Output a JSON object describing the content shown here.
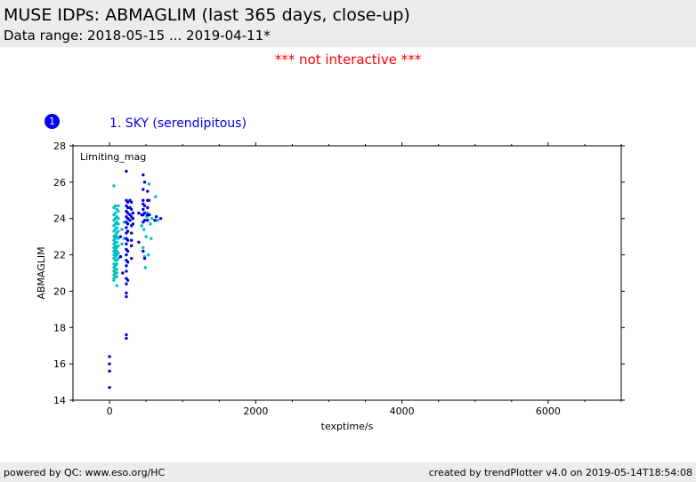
{
  "header": {
    "title": "MUSE IDPs: ABMAGLIM (last 365 days, close-up)",
    "subtitle": "Data range: 2018-05-15 ... 2019-04-11*"
  },
  "notice": "*** not interactive ***",
  "panel": {
    "badge": "1",
    "title": "1. SKY (serendipitous)"
  },
  "footer": {
    "left": "powered by QC: www.eso.org/HC",
    "right": "created by trendPlotter v4.0 on 2019-05-14T18:54:08"
  },
  "colors": {
    "series_a": "#00c0c0",
    "series_b": "#0000dd",
    "accent": "#0000ee",
    "notice": "#ff0000"
  },
  "chart_data": {
    "type": "scatter",
    "title": "",
    "xlabel": "texptime/s",
    "ylabel": "ABMAGLIM",
    "annotation": "Limiting_mag",
    "xlim": [
      -500,
      7000
    ],
    "ylim": [
      14,
      28
    ],
    "xticks": [
      0,
      2000,
      4000,
      6000
    ],
    "yticks": [
      14,
      16,
      18,
      20,
      22,
      24,
      26,
      28
    ],
    "grid": false,
    "series": [
      {
        "color": "#00c0c0",
        "points": [
          [
            60,
            25.8
          ],
          [
            60,
            24.6
          ],
          [
            60,
            24.2
          ],
          [
            60,
            23.9
          ],
          [
            60,
            23.6
          ],
          [
            60,
            23.3
          ],
          [
            60,
            23.0
          ],
          [
            60,
            22.8
          ],
          [
            60,
            22.6
          ],
          [
            60,
            22.4
          ],
          [
            60,
            22.2
          ],
          [
            60,
            22.0
          ],
          [
            60,
            21.8
          ],
          [
            60,
            21.5
          ],
          [
            60,
            21.3
          ],
          [
            60,
            21.1
          ],
          [
            60,
            20.9
          ],
          [
            60,
            20.7
          ],
          [
            60,
            20.6
          ],
          [
            80,
            24.7
          ],
          [
            80,
            24.3
          ],
          [
            80,
            24.0
          ],
          [
            80,
            23.7
          ],
          [
            80,
            23.4
          ],
          [
            80,
            23.1
          ],
          [
            80,
            22.9
          ],
          [
            80,
            22.7
          ],
          [
            80,
            22.5
          ],
          [
            80,
            22.3
          ],
          [
            80,
            22.1
          ],
          [
            80,
            21.9
          ],
          [
            80,
            21.7
          ],
          [
            80,
            21.4
          ],
          [
            80,
            21.2
          ],
          [
            80,
            21.0
          ],
          [
            80,
            20.8
          ],
          [
            100,
            24.5
          ],
          [
            100,
            24.1
          ],
          [
            100,
            23.8
          ],
          [
            100,
            23.5
          ],
          [
            100,
            23.2
          ],
          [
            100,
            23.0
          ],
          [
            100,
            22.7
          ],
          [
            100,
            22.4
          ],
          [
            100,
            22.2
          ],
          [
            100,
            22.0
          ],
          [
            100,
            21.7
          ],
          [
            100,
            21.5
          ],
          [
            100,
            21.2
          ],
          [
            100,
            21.0
          ],
          [
            100,
            20.8
          ],
          [
            100,
            20.3
          ],
          [
            120,
            24.7
          ],
          [
            120,
            24.4
          ],
          [
            120,
            24.0
          ],
          [
            120,
            23.7
          ],
          [
            120,
            23.3
          ],
          [
            120,
            22.9
          ],
          [
            120,
            22.5
          ],
          [
            120,
            22.1
          ],
          [
            120,
            21.8
          ],
          [
            170,
            23.4
          ],
          [
            170,
            22.6
          ],
          [
            200,
            23.8
          ],
          [
            200,
            22.9
          ],
          [
            440,
            23.6
          ],
          [
            460,
            22.4
          ],
          [
            470,
            23.4
          ],
          [
            480,
            21.9
          ],
          [
            490,
            21.3
          ],
          [
            500,
            23.0
          ],
          [
            510,
            24.1
          ],
          [
            520,
            24.3
          ],
          [
            530,
            22.0
          ],
          [
            540,
            25.9
          ],
          [
            550,
            24.2
          ],
          [
            560,
            23.7
          ],
          [
            570,
            22.9
          ],
          [
            580,
            24.0
          ],
          [
            630,
            25.2
          ],
          [
            660,
            23.9
          ]
        ]
      },
      {
        "color": "#0000dd",
        "points": [
          [
            0,
            16.4
          ],
          [
            0,
            16.0
          ],
          [
            0,
            15.6
          ],
          [
            0,
            14.7
          ],
          [
            150,
            23.0
          ],
          [
            150,
            21.9
          ],
          [
            180,
            21.0
          ],
          [
            230,
            26.6
          ],
          [
            230,
            25.0
          ],
          [
            230,
            24.7
          ],
          [
            230,
            24.4
          ],
          [
            230,
            24.1
          ],
          [
            230,
            23.8
          ],
          [
            230,
            23.5
          ],
          [
            230,
            23.2
          ],
          [
            230,
            22.9
          ],
          [
            230,
            22.6
          ],
          [
            230,
            22.3
          ],
          [
            230,
            22.0
          ],
          [
            230,
            21.7
          ],
          [
            230,
            21.4
          ],
          [
            230,
            21.1
          ],
          [
            230,
            20.7
          ],
          [
            230,
            20.4
          ],
          [
            230,
            19.9
          ],
          [
            230,
            19.7
          ],
          [
            230,
            17.6
          ],
          [
            230,
            17.4
          ],
          [
            250,
            24.9
          ],
          [
            250,
            24.6
          ],
          [
            250,
            24.3
          ],
          [
            250,
            24.0
          ],
          [
            250,
            23.7
          ],
          [
            250,
            23.3
          ],
          [
            250,
            22.8
          ],
          [
            250,
            22.2
          ],
          [
            250,
            21.6
          ],
          [
            250,
            20.6
          ],
          [
            280,
            25.0
          ],
          [
            280,
            24.6
          ],
          [
            280,
            24.2
          ],
          [
            280,
            23.9
          ],
          [
            300,
            24.9
          ],
          [
            300,
            24.5
          ],
          [
            300,
            24.1
          ],
          [
            300,
            23.6
          ],
          [
            300,
            23.2
          ],
          [
            300,
            22.8
          ],
          [
            300,
            22.5
          ],
          [
            300,
            21.8
          ],
          [
            320,
            24.3
          ],
          [
            320,
            24.0
          ],
          [
            320,
            23.7
          ],
          [
            400,
            24.3
          ],
          [
            400,
            22.7
          ],
          [
            440,
            24.2
          ],
          [
            460,
            26.4
          ],
          [
            460,
            25.6
          ],
          [
            460,
            25.0
          ],
          [
            460,
            24.8
          ],
          [
            460,
            24.5
          ],
          [
            460,
            24.2
          ],
          [
            460,
            23.8
          ],
          [
            460,
            22.2
          ],
          [
            480,
            26.0
          ],
          [
            480,
            24.7
          ],
          [
            480,
            24.3
          ],
          [
            480,
            23.9
          ],
          [
            480,
            21.8
          ],
          [
            520,
            25.5
          ],
          [
            520,
            25.0
          ],
          [
            520,
            24.6
          ],
          [
            520,
            24.2
          ],
          [
            520,
            23.9
          ],
          [
            540,
            25.0
          ],
          [
            540,
            24.2
          ],
          [
            620,
            23.9
          ],
          [
            640,
            24.1
          ],
          [
            700,
            24.0
          ]
        ]
      }
    ]
  }
}
